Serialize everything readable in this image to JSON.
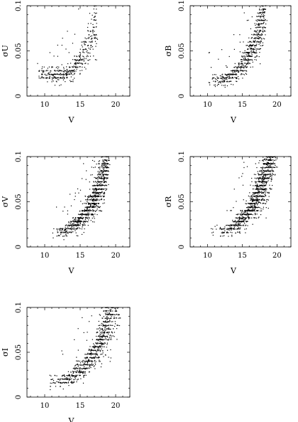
{
  "chart_data": [
    {
      "type": "scatter",
      "panel": "top-left",
      "xlabel": "V",
      "ylabel": "σU",
      "xlim": [
        7.5,
        22
      ],
      "ylim": [
        0,
        0.1
      ],
      "xticks": [
        "10",
        "15",
        "20"
      ],
      "yticks": [
        "0",
        "0.05",
        "0.1"
      ],
      "marker_color": "#000000",
      "point_count_approx": 450,
      "points_sample": [
        [
          9.0,
          0.036
        ],
        [
          9.2,
          0.022
        ],
        [
          11.6,
          0.024
        ],
        [
          13.0,
          0.052
        ],
        [
          14.0,
          0.018
        ],
        [
          15.0,
          0.025
        ],
        [
          15.8,
          0.03
        ],
        [
          16.0,
          0.045
        ],
        [
          16.3,
          0.06
        ],
        [
          16.6,
          0.085
        ],
        [
          16.8,
          0.07
        ],
        [
          17.0,
          0.1
        ],
        [
          17.2,
          0.055
        ],
        [
          17.3,
          0.04
        ]
      ]
    },
    {
      "type": "scatter",
      "panel": "top-right",
      "xlabel": "V",
      "ylabel": "σB",
      "xlim": [
        7.5,
        22
      ],
      "ylim": [
        0,
        0.1
      ],
      "xticks": [
        "10",
        "15",
        "20"
      ],
      "yticks": [
        "0",
        "0.05",
        "0.1"
      ],
      "marker_color": "#000000",
      "point_count_approx": 700,
      "points_sample": [
        [
          10.2,
          0.015
        ],
        [
          12.2,
          0.018
        ],
        [
          13.4,
          0.013
        ],
        [
          14.5,
          0.019
        ],
        [
          15.5,
          0.025
        ],
        [
          16.2,
          0.032
        ],
        [
          16.8,
          0.043
        ],
        [
          17.2,
          0.052
        ],
        [
          17.6,
          0.065
        ],
        [
          17.9,
          0.08
        ],
        [
          18.2,
          0.092
        ],
        [
          18.4,
          0.1
        ]
      ]
    },
    {
      "type": "scatter",
      "panel": "middle-left",
      "xlabel": "V",
      "ylabel": "σV",
      "xlim": [
        7.5,
        22
      ],
      "ylim": [
        0,
        0.1
      ],
      "xticks": [
        "10",
        "15",
        "20"
      ],
      "yticks": [
        "0",
        "0.05",
        "0.1"
      ],
      "marker_color": "#000000",
      "point_count_approx": 1100,
      "points_sample": [
        [
          11.2,
          0.01
        ],
        [
          12.0,
          0.013
        ],
        [
          13.3,
          0.015
        ],
        [
          14.3,
          0.018
        ],
        [
          15.3,
          0.022
        ],
        [
          16.0,
          0.028
        ],
        [
          16.8,
          0.036
        ],
        [
          17.5,
          0.045
        ],
        [
          18.0,
          0.06
        ],
        [
          18.4,
          0.075
        ],
        [
          18.7,
          0.09
        ],
        [
          19.0,
          0.1
        ]
      ]
    },
    {
      "type": "scatter",
      "panel": "middle-right",
      "xlabel": "V",
      "ylabel": "σR",
      "xlim": [
        7.5,
        22
      ],
      "ylim": [
        0,
        0.1
      ],
      "xticks": [
        "10",
        "15",
        "20"
      ],
      "yticks": [
        "0",
        "0.05",
        "0.1"
      ],
      "marker_color": "#000000",
      "point_count_approx": 1500,
      "points_sample": [
        [
          10.8,
          0.013
        ],
        [
          12.2,
          0.012
        ],
        [
          13.5,
          0.013
        ],
        [
          14.6,
          0.016
        ],
        [
          15.6,
          0.02
        ],
        [
          16.5,
          0.025
        ],
        [
          17.4,
          0.033
        ],
        [
          18.0,
          0.042
        ],
        [
          18.5,
          0.052
        ],
        [
          19.0,
          0.065
        ],
        [
          19.4,
          0.08
        ],
        [
          19.7,
          0.1
        ]
      ]
    },
    {
      "type": "scatter",
      "panel": "bottom-left",
      "xlabel": "V",
      "ylabel": "σI",
      "xlim": [
        7.5,
        22
      ],
      "ylim": [
        0,
        0.1
      ],
      "xticks": [
        "10",
        "15",
        "20"
      ],
      "yticks": [
        "0",
        "0.05",
        "0.1"
      ],
      "marker_color": "#000000",
      "point_count_approx": 1100,
      "points_sample": [
        [
          10.8,
          0.012
        ],
        [
          12.2,
          0.012
        ],
        [
          13.4,
          0.013
        ],
        [
          14.5,
          0.017
        ],
        [
          15.5,
          0.022
        ],
        [
          16.3,
          0.028
        ],
        [
          17.0,
          0.035
        ],
        [
          17.6,
          0.045
        ],
        [
          18.0,
          0.058
        ],
        [
          18.3,
          0.07
        ],
        [
          18.6,
          0.085
        ],
        [
          18.8,
          0.1
        ]
      ]
    }
  ]
}
